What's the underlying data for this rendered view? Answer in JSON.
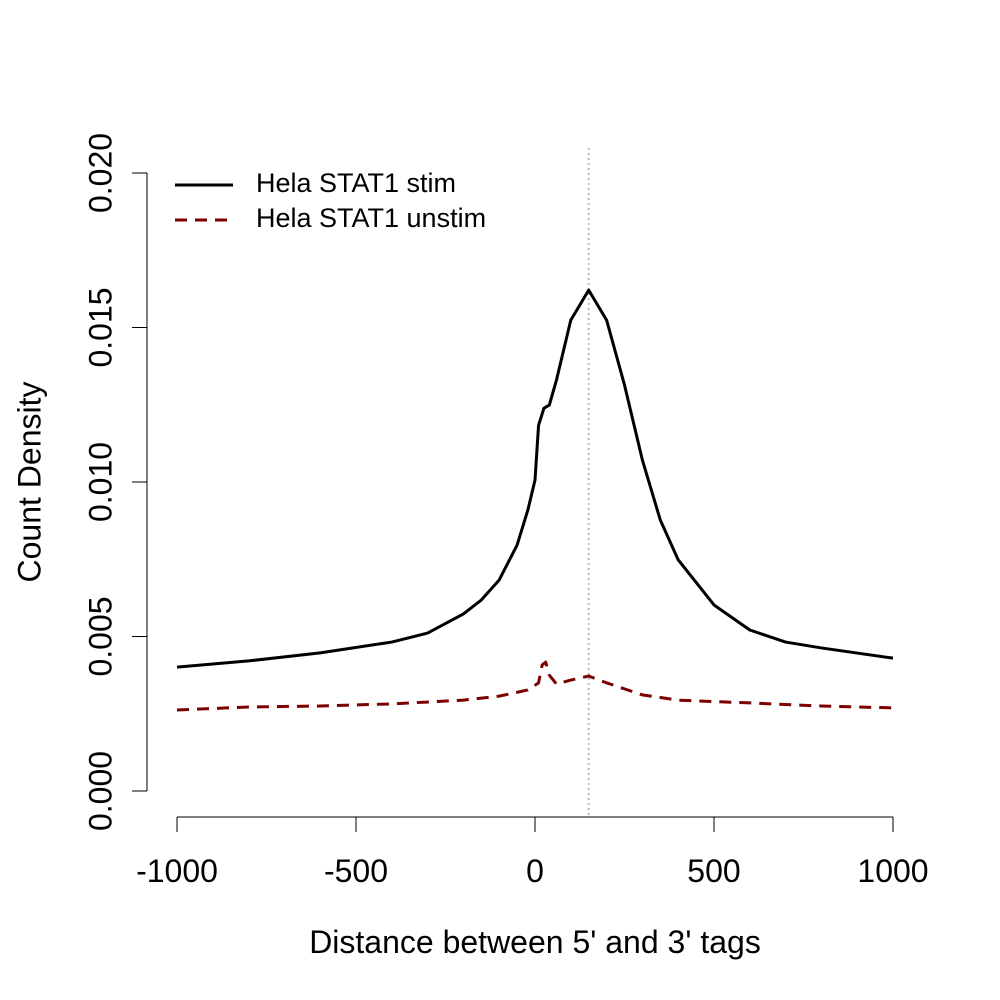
{
  "chart_data": {
    "type": "line",
    "x_label": "Distance between 5' and 3' tags",
    "y_label": "Count Density",
    "xlim": [
      -1000,
      1000
    ],
    "xticks": [
      -1000,
      -500,
      0,
      500,
      1000
    ],
    "ylim": [
      0,
      0.02
    ],
    "yticks": [
      {
        "value": 0,
        "label": "0.000"
      },
      {
        "value": 0.005,
        "label": "0.005"
      },
      {
        "value": 0.01,
        "label": "0.010"
      },
      {
        "value": 0.015,
        "label": "0.015"
      },
      {
        "value": 0.02,
        "label": "0.020"
      }
    ],
    "vline": 150,
    "vline_color": "#bbbbbb",
    "legend": "top-left",
    "series": [
      {
        "name": "Hela STAT1 stim",
        "color": "#000000",
        "dash": false,
        "x": [
          -1000,
          -800,
          -600,
          -400,
          -300,
          -200,
          -150,
          -100,
          -50,
          -20,
          0,
          10,
          25,
          40,
          60,
          100,
          150,
          200,
          250,
          300,
          350,
          400,
          500,
          600,
          700,
          800,
          1000
        ],
        "values": [
          0.00401,
          0.00421,
          0.00447,
          0.00482,
          0.00511,
          0.00573,
          0.00618,
          0.00683,
          0.00796,
          0.00909,
          0.01006,
          0.01184,
          0.01239,
          0.01249,
          0.0133,
          0.01524,
          0.01621,
          0.01524,
          0.01314,
          0.01071,
          0.00877,
          0.00748,
          0.00602,
          0.00521,
          0.00482,
          0.00463,
          0.0043
        ]
      },
      {
        "name": "Hela STAT1 unstim",
        "color": "#7a0000",
        "dash": true,
        "x": [
          -1000,
          -800,
          -600,
          -400,
          -200,
          -100,
          -20,
          10,
          20,
          30,
          40,
          60,
          100,
          150,
          200,
          300,
          400,
          600,
          800,
          1000
        ],
        "values": [
          0.00262,
          0.00272,
          0.00275,
          0.00282,
          0.00294,
          0.00307,
          0.00327,
          0.0035,
          0.00408,
          0.00417,
          0.00375,
          0.00346,
          0.00359,
          0.00372,
          0.0035,
          0.00311,
          0.00294,
          0.00285,
          0.00275,
          0.00269
        ]
      }
    ]
  }
}
